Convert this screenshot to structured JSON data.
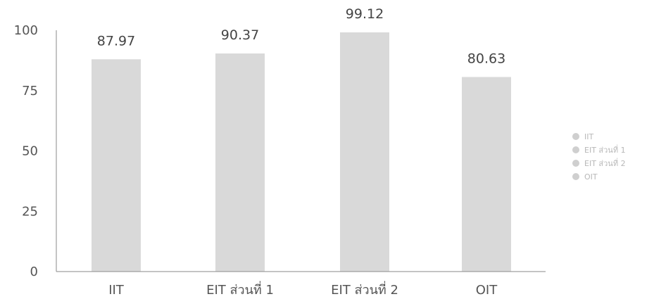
{
  "chart_data": {
    "type": "bar",
    "categories": [
      "IIT",
      "EIT ส่วนที่ 1",
      "EIT ส่วนที่ 2",
      "OIT"
    ],
    "values": [
      87.97,
      90.37,
      99.12,
      80.63
    ],
    "data_labels": [
      "87.97",
      "90.37",
      "99.12",
      "80.63"
    ],
    "ylim": [
      0,
      100
    ],
    "yticks": [
      0,
      25,
      50,
      75,
      100
    ],
    "ytick_labels": [
      "0",
      "25",
      "50",
      "75",
      "100"
    ],
    "legend": {
      "position": "right",
      "entries": [
        "IIT",
        "EIT ส่วนที่ 1",
        "EIT ส่วนที่ 2",
        "OIT"
      ]
    },
    "grid": false,
    "bar_color": "#d9d9d9",
    "legend_marker_color": "#cfcfcf"
  }
}
